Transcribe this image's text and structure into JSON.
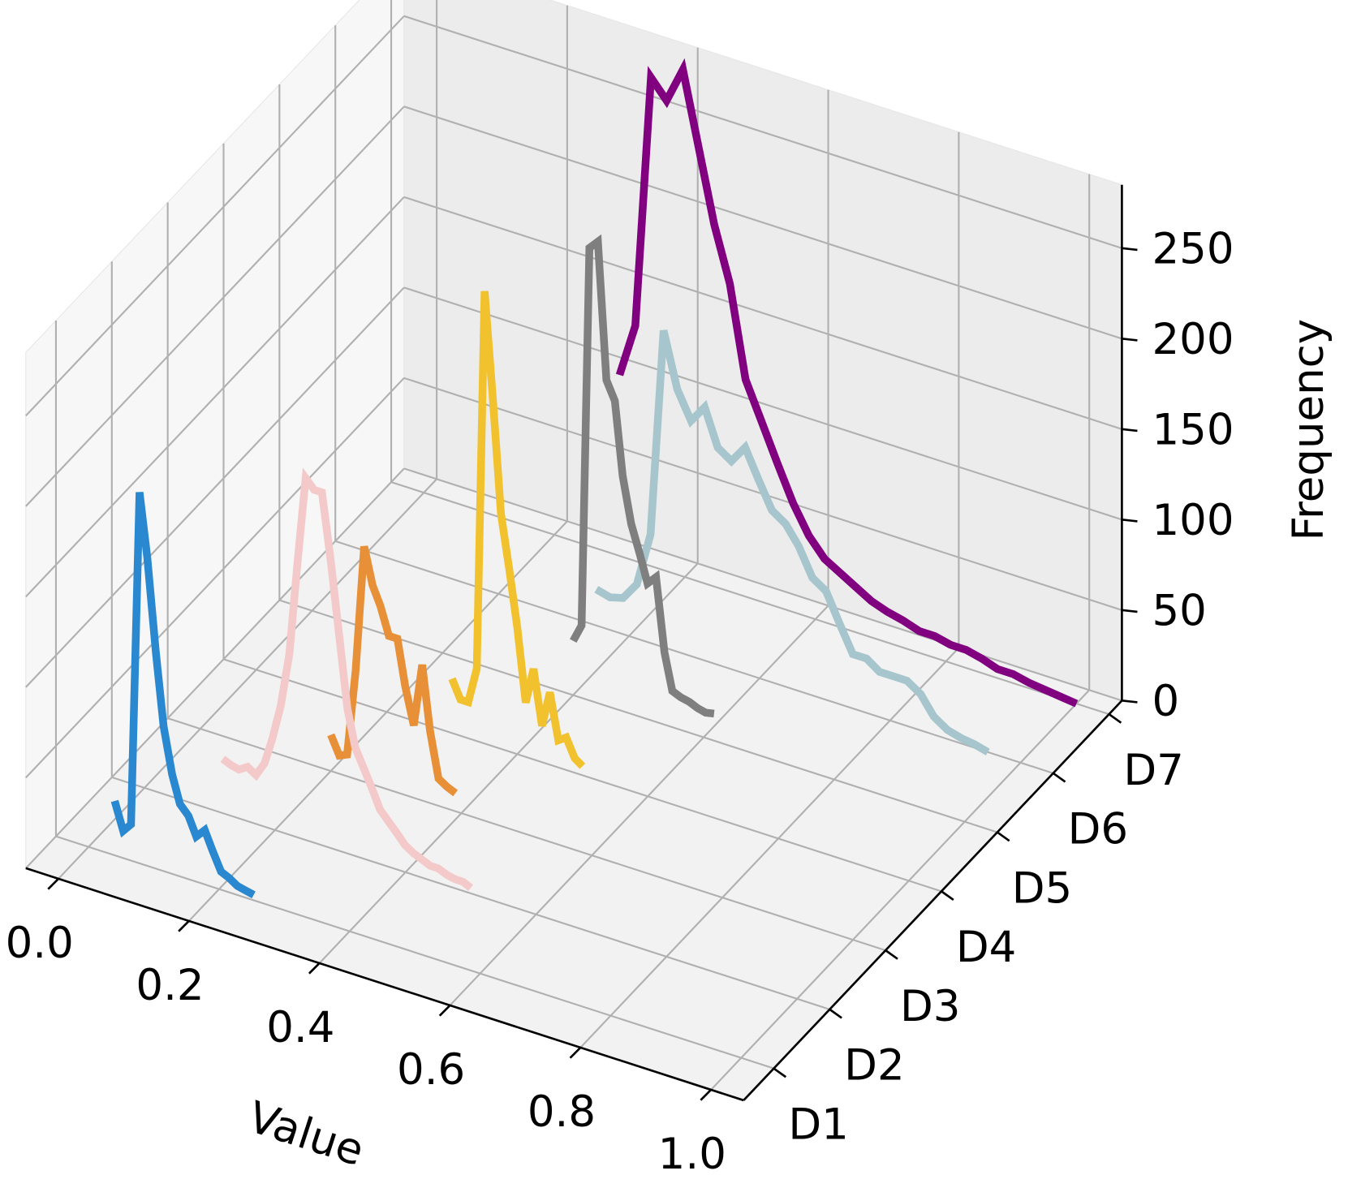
{
  "chart_data": {
    "type": "line3d",
    "x_label": "Value",
    "z_label": "Frequency",
    "xlim": [
      -0.05,
      1.05
    ],
    "zlim": [
      0,
      285
    ],
    "xticks": [
      {
        "value": 0,
        "label": "0.0"
      },
      {
        "value": 0.2,
        "label": "0.2"
      },
      {
        "value": 0.4,
        "label": "0.4"
      },
      {
        "value": 0.6,
        "label": "0.6"
      },
      {
        "value": 0.8,
        "label": "0.8"
      },
      {
        "value": 1,
        "label": "1.0"
      }
    ],
    "zticks": [
      0,
      50,
      100,
      150,
      200,
      250
    ],
    "categories": [
      "D1",
      "D2",
      "D3",
      "D4",
      "D5",
      "D6",
      "D7"
    ],
    "grid": true,
    "series": [
      {
        "color": "#2a88d0",
        "x": [
          0.04,
          0.053,
          0.065,
          0.078,
          0.09,
          0.103,
          0.115,
          0.128,
          0.14,
          0.153,
          0.165,
          0.178,
          0.19,
          0.203,
          0.215,
          0.228,
          0.24,
          0.253
        ],
        "values": [
          30,
          15,
          20,
          205,
          170,
          120,
          80,
          55,
          40,
          35,
          25,
          30,
          20,
          10,
          8,
          5,
          4,
          3
        ]
      },
      {
        "color": "#f4c9c9",
        "x": [
          0.12,
          0.133,
          0.145,
          0.158,
          0.171,
          0.184,
          0.196,
          0.209,
          0.222,
          0.234,
          0.247,
          0.26,
          0.272,
          0.285,
          0.298,
          0.311,
          0.323,
          0.336,
          0.349,
          0.361,
          0.374,
          0.387,
          0.399,
          0.412,
          0.425,
          0.438,
          0.45,
          0.463,
          0.476,
          0.488,
          0.5
        ],
        "values": [
          30,
          28,
          27,
          30,
          27,
          35,
          50,
          70,
          100,
          150,
          200,
          195,
          195,
          160,
          120,
          80,
          60,
          50,
          40,
          30,
          25,
          20,
          15,
          12,
          10,
          8,
          8,
          6,
          5,
          5,
          3
        ]
      },
      {
        "color": "#e89038",
        "x": [
          0.2,
          0.213,
          0.225,
          0.238,
          0.251,
          0.264,
          0.276,
          0.289,
          0.302,
          0.314,
          0.327,
          0.34,
          0.352,
          0.365,
          0.378,
          0.391
        ],
        "values": [
          20,
          10,
          12,
          60,
          130,
          110,
          100,
          85,
          85,
          60,
          40,
          75,
          40,
          15,
          12,
          10
        ]
      },
      {
        "color": "#f2c12e",
        "x": [
          0.3,
          0.313,
          0.325,
          0.338,
          0.35,
          0.363,
          0.375,
          0.388,
          0.4,
          0.413,
          0.425,
          0.438,
          0.45,
          0.463,
          0.475,
          0.488,
          0.5
        ],
        "values": [
          30,
          20,
          20,
          40,
          250,
          190,
          130,
          100,
          70,
          30,
          50,
          20,
          40,
          15,
          18,
          8,
          5
        ]
      },
      {
        "color": "#7f7f7f",
        "x": [
          0.4,
          0.413,
          0.425,
          0.438,
          0.451,
          0.464,
          0.476,
          0.489,
          0.502,
          0.514,
          0.527,
          0.54,
          0.552,
          0.565,
          0.578,
          0.591,
          0.603,
          0.616
        ],
        "values": [
          30,
          40,
          250,
          255,
          180,
          170,
          130,
          105,
          90,
          75,
          80,
          40,
          20,
          18,
          17,
          15,
          14,
          15
        ]
      },
      {
        "color": "#a6c5cc",
        "x": [
          0.35,
          0.371,
          0.391,
          0.412,
          0.433,
          0.453,
          0.474,
          0.495,
          0.516,
          0.536,
          0.557,
          0.578,
          0.598,
          0.619,
          0.64,
          0.66,
          0.681,
          0.702,
          0.722,
          0.743,
          0.764,
          0.784,
          0.805,
          0.826,
          0.847,
          0.867,
          0.888,
          0.909,
          0.929,
          0.95
        ],
        "values": [
          20,
          18,
          20,
          30,
          60,
          175,
          145,
          130,
          140,
          120,
          115,
          125,
          110,
          95,
          90,
          80,
          65,
          60,
          45,
          30,
          30,
          25,
          25,
          25,
          20,
          10,
          5,
          3,
          2,
          0
        ]
      },
      {
        "color": "#800080",
        "x": [
          0.3,
          0.324,
          0.348,
          0.372,
          0.397,
          0.421,
          0.445,
          0.469,
          0.493,
          0.517,
          0.541,
          0.566,
          0.59,
          0.614,
          0.638,
          0.662,
          0.686,
          0.71,
          0.734,
          0.759,
          0.783,
          0.807,
          0.831,
          0.855,
          0.879,
          0.903,
          0.928,
          0.952,
          0.976,
          1.0
        ],
        "values": [
          100,
          130,
          270,
          260,
          280,
          240,
          200,
          170,
          120,
          100,
          80,
          60,
          45,
          35,
          30,
          25,
          20,
          17,
          15,
          12,
          12,
          10,
          10,
          8,
          5,
          5,
          3,
          2,
          1,
          0
        ]
      }
    ]
  }
}
